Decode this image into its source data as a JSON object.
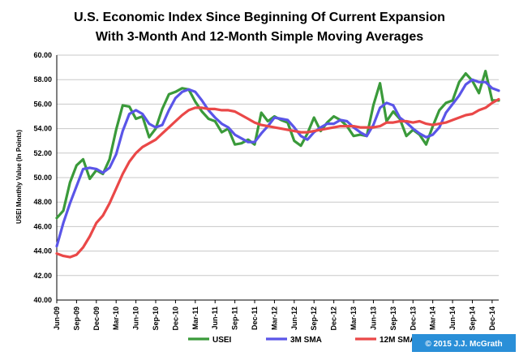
{
  "chart_data": {
    "type": "line",
    "title": "U.S. Economic Index Since Beginning Of Current Expansion",
    "subtitle": "With 3-Month And 12-Month Simple Moving Averages",
    "xlabel": "",
    "ylabel": "USEI Monthly Value (In Points)",
    "ylim": [
      40,
      60
    ],
    "yticks": [
      "40.00",
      "42.00",
      "44.00",
      "46.00",
      "48.00",
      "50.00",
      "52.00",
      "54.00",
      "56.00",
      "58.00",
      "60.00"
    ],
    "grid": true,
    "legend_position": "bottom",
    "x": [
      "Jun-09",
      "Jul-09",
      "Aug-09",
      "Sep-09",
      "Oct-09",
      "Nov-09",
      "Dec-09",
      "Jan-10",
      "Feb-10",
      "Mar-10",
      "Apr-10",
      "May-10",
      "Jun-10",
      "Jul-10",
      "Aug-10",
      "Sep-10",
      "Oct-10",
      "Nov-10",
      "Dec-10",
      "Jan-11",
      "Feb-11",
      "Mar-11",
      "Apr-11",
      "May-11",
      "Jun-11",
      "Jul-11",
      "Aug-11",
      "Sep-11",
      "Oct-11",
      "Nov-11",
      "Dec-11",
      "Jan-12",
      "Feb-12",
      "Mar-12",
      "Apr-12",
      "May-12",
      "Jun-12",
      "Jul-12",
      "Aug-12",
      "Sep-12",
      "Oct-12",
      "Nov-12",
      "Dec-12",
      "Jan-13",
      "Feb-13",
      "Mar-13",
      "Apr-13",
      "May-13",
      "Jun-13",
      "Jul-13",
      "Aug-13",
      "Sep-13",
      "Oct-13",
      "Nov-13",
      "Dec-13",
      "Jan-14",
      "Feb-14",
      "Mar-14",
      "Apr-14",
      "May-14",
      "Jun-14",
      "Jul-14",
      "Aug-14",
      "Sep-14",
      "Oct-14",
      "Nov-14",
      "Dec-14",
      "Jan-15"
    ],
    "xtick_labels": [
      "Jun-09",
      "Sep-09",
      "Dec-09",
      "Mar-10",
      "Jun-10",
      "Sep-10",
      "Dec-10",
      "Mar-11",
      "Jun-11",
      "Sep-11",
      "Dec-11",
      "Mar-12",
      "Jun-12",
      "Sep-12",
      "Dec-12",
      "Mar-13",
      "Jun-13",
      "Sep-13",
      "Dec-13",
      "Mar-14",
      "Jun-14",
      "Sep-14",
      "Dec-14"
    ],
    "series": [
      {
        "name": "USEI",
        "color": "#3a9a3a",
        "values": [
          46.7,
          47.3,
          49.6,
          51.0,
          51.5,
          49.9,
          50.6,
          50.3,
          51.5,
          53.9,
          55.9,
          55.8,
          54.8,
          55.0,
          53.3,
          54.0,
          55.6,
          56.8,
          57.0,
          57.3,
          57.2,
          56.2,
          55.4,
          54.8,
          54.6,
          53.7,
          54.0,
          52.7,
          52.8,
          53.1,
          52.7,
          55.3,
          54.6,
          55.0,
          54.7,
          54.5,
          53.0,
          52.6,
          53.6,
          54.9,
          53.8,
          54.5,
          55.0,
          54.7,
          54.2,
          53.4,
          53.5,
          53.4,
          55.9,
          57.7,
          54.6,
          55.4,
          54.8,
          53.4,
          53.9,
          53.5,
          52.7,
          54.2,
          55.5,
          56.1,
          56.3,
          57.8,
          58.5,
          57.9,
          56.9,
          58.7,
          56.3,
          56.3
        ]
      },
      {
        "name": "3M SMA",
        "color": "#5a55e8",
        "values": [
          44.4,
          46.3,
          47.9,
          49.3,
          50.7,
          50.8,
          50.7,
          50.4,
          50.8,
          51.9,
          53.8,
          55.2,
          55.5,
          55.2,
          54.4,
          54.1,
          54.3,
          55.5,
          56.5,
          57.0,
          57.2,
          57.0,
          56.3,
          55.5,
          54.9,
          54.4,
          54.1,
          53.5,
          53.2,
          52.9,
          52.9,
          53.6,
          54.2,
          54.9,
          54.8,
          54.7,
          54.1,
          53.4,
          53.1,
          53.7,
          54.1,
          54.4,
          54.4,
          54.7,
          54.6,
          54.1,
          53.7,
          53.4,
          54.3,
          55.7,
          56.1,
          55.9,
          54.9,
          54.5,
          54.0,
          53.6,
          53.3,
          53.5,
          54.1,
          55.3,
          56.0,
          56.7,
          57.6,
          58.0,
          57.8,
          57.8,
          57.3,
          57.1
        ]
      },
      {
        "name": "12M SMA",
        "color": "#ea4848",
        "values": [
          43.8,
          43.6,
          43.5,
          43.7,
          44.3,
          45.2,
          46.3,
          46.9,
          47.9,
          49.1,
          50.3,
          51.3,
          52.0,
          52.5,
          52.8,
          53.1,
          53.6,
          54.1,
          54.6,
          55.1,
          55.5,
          55.7,
          55.7,
          55.6,
          55.6,
          55.5,
          55.5,
          55.4,
          55.1,
          54.8,
          54.5,
          54.3,
          54.2,
          54.1,
          54.0,
          53.9,
          53.8,
          53.7,
          53.7,
          53.8,
          53.9,
          54.0,
          54.1,
          54.2,
          54.2,
          54.2,
          54.1,
          54.1,
          54.1,
          54.2,
          54.5,
          54.5,
          54.6,
          54.6,
          54.5,
          54.6,
          54.4,
          54.3,
          54.4,
          54.5,
          54.7,
          54.9,
          55.1,
          55.2,
          55.5,
          55.7,
          56.1,
          56.4
        ]
      }
    ]
  },
  "copyright": "© 2015 J.J. McGrath"
}
